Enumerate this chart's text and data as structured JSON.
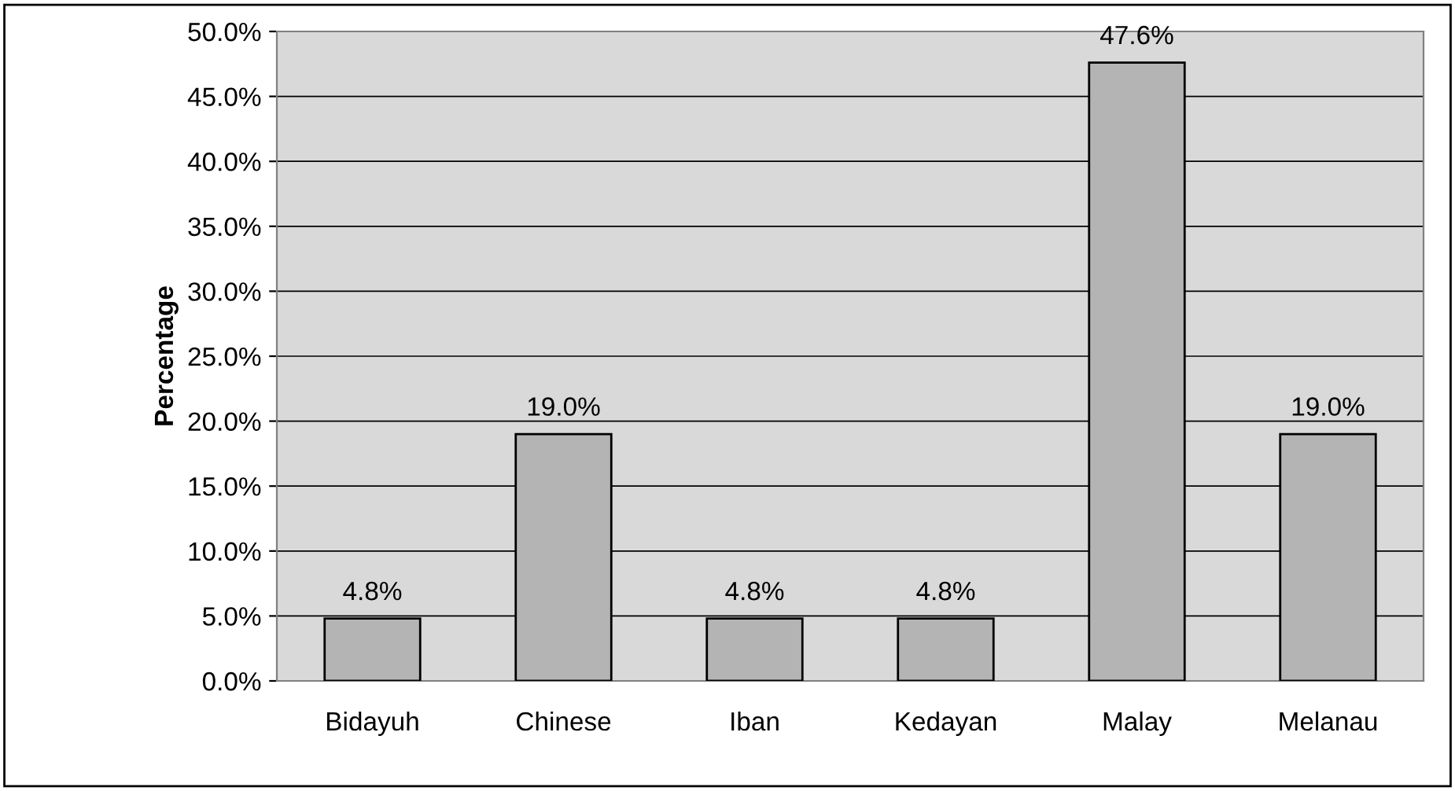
{
  "chart_data": {
    "type": "bar",
    "ylabel": "Percentage",
    "categories": [
      "Bidayuh",
      "Chinese",
      "Iban",
      "Kedayan",
      "Malay",
      "Melanau"
    ],
    "values": [
      4.8,
      19.0,
      4.8,
      4.8,
      47.6,
      19.0
    ],
    "value_labels": [
      "4.8%",
      "19.0%",
      "4.8%",
      "4.8%",
      "47.6%",
      "19.0%"
    ],
    "color": "#b4b4b4",
    "ylim": [
      0,
      50
    ],
    "yticks": [
      {
        "value": 0,
        "label": "0.0%"
      },
      {
        "value": 5,
        "label": "5.0%"
      },
      {
        "value": 10,
        "label": "10.0%"
      },
      {
        "value": 15,
        "label": "15.0%"
      },
      {
        "value": 20,
        "label": "20.0%"
      },
      {
        "value": 25,
        "label": "25.0%"
      },
      {
        "value": 30,
        "label": "30.0%"
      },
      {
        "value": 35,
        "label": "35.0%"
      },
      {
        "value": 40,
        "label": "40.0%"
      },
      {
        "value": 45,
        "label": "45.0%"
      },
      {
        "value": 50,
        "label": "50.0%"
      }
    ],
    "grid": "y"
  }
}
